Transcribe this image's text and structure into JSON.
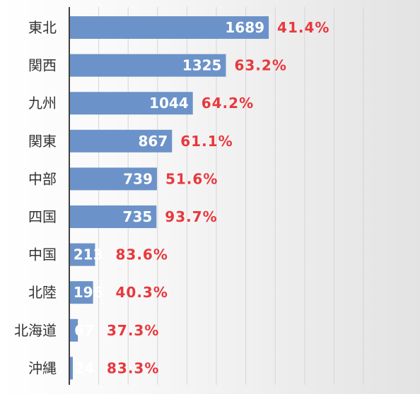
{
  "chart_data": {
    "type": "bar",
    "orientation": "horizontal",
    "categories": [
      "東北",
      "関西",
      "九州",
      "関東",
      "中部",
      "四国",
      "中国",
      "北陸",
      "北海道",
      "沖縄"
    ],
    "values": [
      1689,
      1325,
      1044,
      867,
      739,
      735,
      213,
      196,
      67,
      24
    ],
    "value_labels": [
      "1689",
      "1325",
      "1044",
      "867",
      "739",
      "735",
      "213",
      "196",
      "67",
      "24"
    ],
    "percent_labels": [
      "41.4%",
      "63.2%",
      "64.2%",
      "61.1%",
      "51.6%",
      "93.7%",
      "83.6%",
      "40.3%",
      "37.3%",
      "83.3%"
    ],
    "xlim": [
      0,
      2500
    ],
    "grid_step": 250,
    "grid": true,
    "title": "",
    "xlabel": "",
    "ylabel": ""
  },
  "colors": {
    "bar": "#6c93c9",
    "value_text": "#ffffff",
    "percent_text": "#e8383d",
    "category_text": "#333333",
    "grid": "#d6d6d6",
    "axis": "#404040"
  }
}
